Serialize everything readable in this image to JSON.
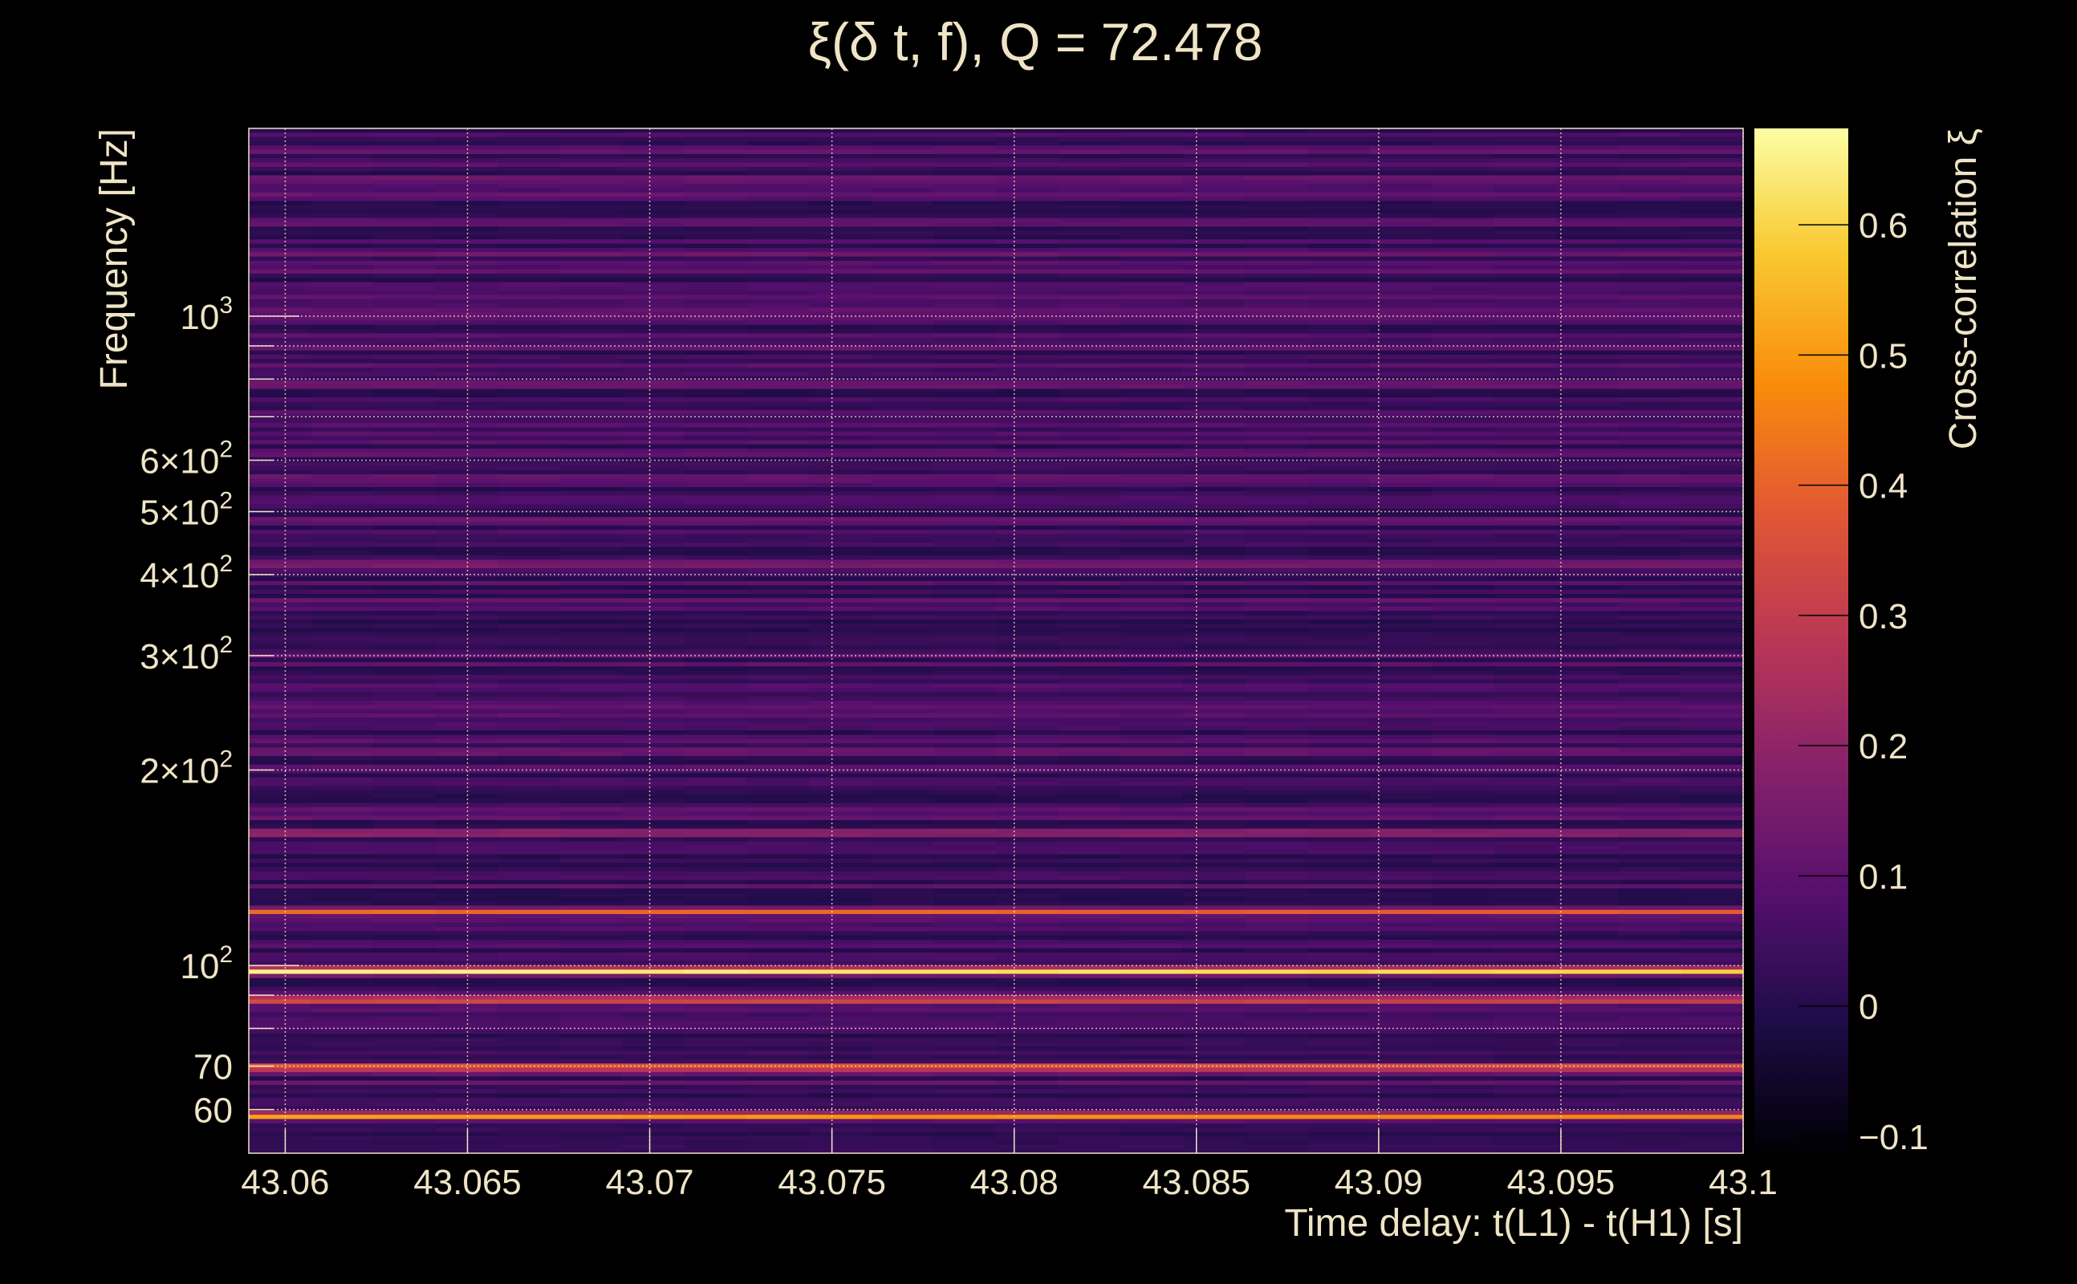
{
  "chart_data": {
    "type": "heatmap",
    "title": "ξ(δ t, f), Q = 72.478",
    "xlabel": "Time delay: t(L1) - t(H1) [s]",
    "ylabel": "Frequency [Hz]",
    "colorbar_label": "Cross-correlation ξ",
    "xlim": [
      43.059,
      43.1
    ],
    "ylim": [
      51.4,
      1946
    ],
    "yscale": "log",
    "clim": [
      -0.113,
      0.674
    ],
    "colormap": "inferno",
    "grid": true,
    "x_ticks": [
      {
        "value": 43.06,
        "label": "43.06"
      },
      {
        "value": 43.065,
        "label": "43.065"
      },
      {
        "value": 43.07,
        "label": "43.07"
      },
      {
        "value": 43.075,
        "label": "43.075"
      },
      {
        "value": 43.08,
        "label": "43.08"
      },
      {
        "value": 43.085,
        "label": "43.085"
      },
      {
        "value": 43.09,
        "label": "43.09"
      },
      {
        "value": 43.095,
        "label": "43.095"
      },
      {
        "value": 43.1,
        "label": "43.1"
      }
    ],
    "y_ticks": [
      {
        "value": 1000,
        "base": "10",
        "exp": "3"
      },
      {
        "value": 600,
        "base": "6×10",
        "exp": "2"
      },
      {
        "value": 500,
        "base": "5×10",
        "exp": "2"
      },
      {
        "value": 400,
        "base": "4×10",
        "exp": "2"
      },
      {
        "value": 300,
        "base": "3×10",
        "exp": "2"
      },
      {
        "value": 200,
        "base": "2×10",
        "exp": "2"
      },
      {
        "value": 100,
        "base": "10",
        "exp": "2"
      },
      {
        "value": 70,
        "base": "70",
        "exp": ""
      },
      {
        "value": 60,
        "base": "60",
        "exp": ""
      }
    ],
    "y_minor_grid": [
      900,
      800,
      700,
      90,
      80
    ],
    "colorbar_ticks": [
      {
        "value": 0.6,
        "label": "0.6"
      },
      {
        "value": 0.5,
        "label": "0.5"
      },
      {
        "value": 0.4,
        "label": "0.4"
      },
      {
        "value": 0.3,
        "label": "0.3"
      },
      {
        "value": 0.2,
        "label": "0.2"
      },
      {
        "value": 0.1,
        "label": "0.1"
      },
      {
        "value": 0,
        "label": "0"
      },
      {
        "value": -0.1,
        "label": "−0.1"
      }
    ],
    "background_level": 0.05,
    "bands": [
      {
        "freq": 58.6,
        "value": 0.52
      },
      {
        "freq": 69.7,
        "value": 0.45
      },
      {
        "freq": 88.5,
        "value": 0.4
      },
      {
        "freq": 98,
        "value": 0.66
      },
      {
        "freq": 121,
        "value": 0.42
      },
      {
        "freq": 160,
        "value": 0.25
      },
      {
        "freq": 415,
        "value": 0.2
      },
      {
        "freq": 1250,
        "value": 0.15
      }
    ]
  }
}
